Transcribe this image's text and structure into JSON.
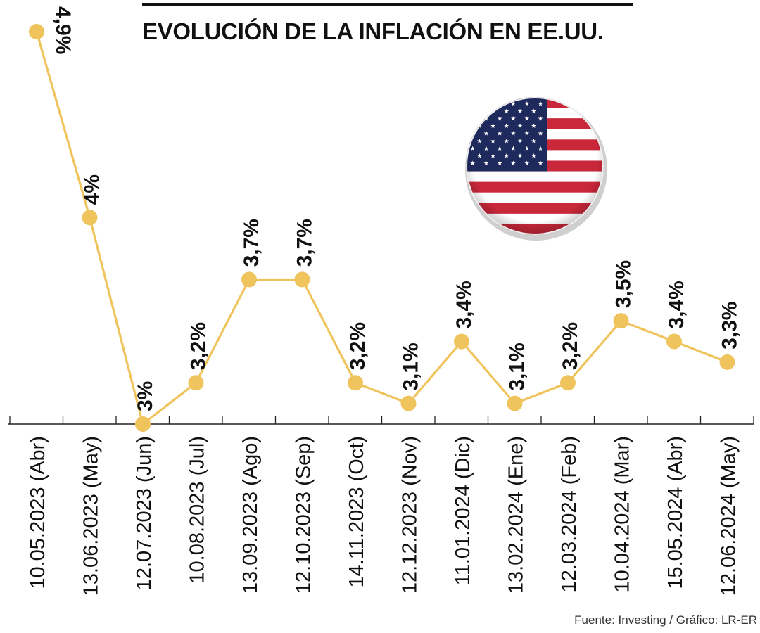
{
  "header": {
    "title": "EVOLUCIÓN DE LA INFLACIÓN EN EE.UU."
  },
  "footer": {
    "source": "Fuente: Investing / Gráfico: LR-ER"
  },
  "colors": {
    "line": "#EFC45C",
    "marker": "#EFC45C",
    "axis": "#222222",
    "label": "#111111"
  },
  "flag_icon": "us-flag-icon",
  "chart_data": {
    "type": "line",
    "title": "EVOLUCIÓN DE LA INFLACIÓN EN EE.UU.",
    "xlabel": "",
    "ylabel": "",
    "grid": false,
    "legend": "none",
    "categories": [
      "10.05.2023 (Abr)",
      "13.06.2023 (May)",
      "12.07.2023 (Jun)",
      "10.08.2023 (Jul)",
      "13.09.2023 (Ago)",
      "12.10.2023 (Sep)",
      "14.11.2023 (Oct)",
      "12.12.2023 (Nov)",
      "11.01.2024 (Dic)",
      "13.02.2024 (Ene)",
      "12.03.2024 (Feb)",
      "10.04.2024 (Mar)",
      "15.05.2024 (Abr)",
      "12.06.2024 (May)"
    ],
    "values": [
      4.9,
      4.0,
      3.0,
      3.2,
      3.7,
      3.7,
      3.2,
      3.1,
      3.4,
      3.1,
      3.2,
      3.5,
      3.4,
      3.3
    ],
    "data_labels": [
      "4,9%",
      "4%",
      "3%",
      "3,2%",
      "3,7%",
      "3,7%",
      "3,2%",
      "3,1%",
      "3,4%",
      "3,1%",
      "3,2%",
      "3,5%",
      "3,4%",
      "3,3%"
    ],
    "ylim": [
      3.0,
      4.9
    ]
  }
}
